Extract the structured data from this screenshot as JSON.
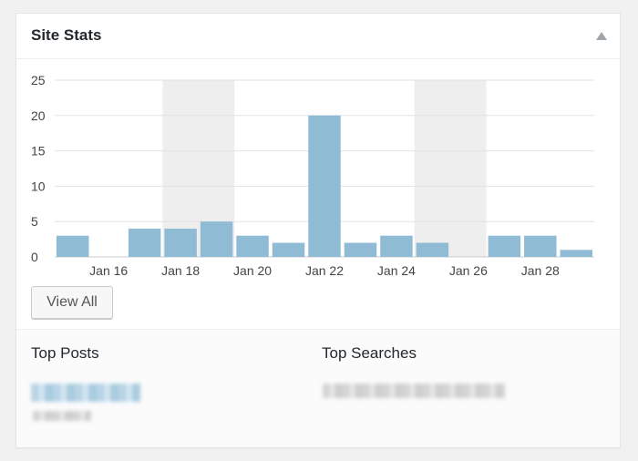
{
  "widget": {
    "title": "Site Stats",
    "toggle_icon": "triangle-up-icon",
    "view_all_label": "View All"
  },
  "chart_data": {
    "type": "bar",
    "categories": [
      "Jan 15",
      "Jan 16",
      "Jan 17",
      "Jan 18",
      "Jan 19",
      "Jan 20",
      "Jan 21",
      "Jan 22",
      "Jan 23",
      "Jan 24",
      "Jan 25",
      "Jan 26",
      "Jan 27",
      "Jan 28",
      "Jan 29"
    ],
    "values": [
      3,
      0,
      4,
      4,
      5,
      3,
      2,
      20,
      2,
      3,
      2,
      0,
      3,
      3,
      1
    ],
    "tick_labels": [
      "Jan 16",
      "Jan 18",
      "Jan 20",
      "Jan 22",
      "Jan 24",
      "Jan 26",
      "Jan 28"
    ],
    "y_ticks": [
      0,
      5,
      10,
      15,
      20,
      25
    ],
    "ylim": [
      0,
      25
    ],
    "grid": true,
    "weekend_bands": [
      [
        "Jan 18",
        "Jan 19"
      ],
      [
        "Jan 25",
        "Jan 26"
      ]
    ],
    "bar_color": "#8fbcd4",
    "band_color": "#eeeeee"
  },
  "lower": {
    "top_posts_title": "Top Posts",
    "top_searches_title": "Top Searches"
  }
}
